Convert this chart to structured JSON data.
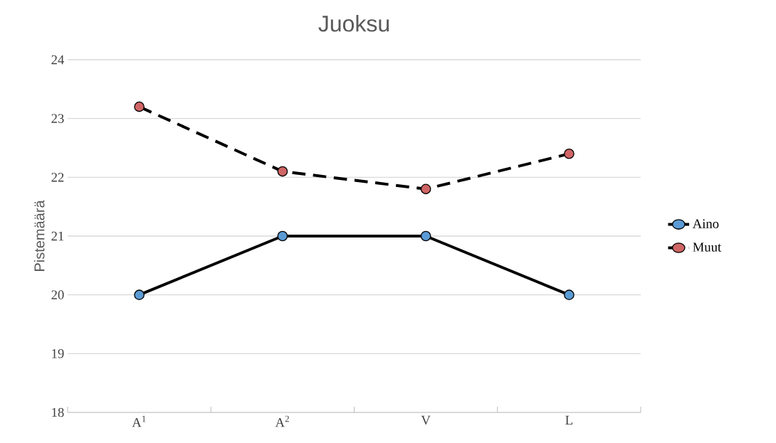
{
  "chart_data": {
    "type": "line",
    "title": "Juoksu",
    "ylabel": "Pistemäärä",
    "categories": [
      "A$^{1}$",
      "A$^{2}$",
      "V",
      "L"
    ],
    "series": [
      {
        "name": "Aino",
        "color": "#5b9bd5",
        "values": [
          20,
          21,
          21,
          20
        ],
        "line_style": "solid"
      },
      {
        "name": "Muut",
        "color": "#d06565",
        "values": [
          23.2,
          22.1,
          21.8,
          22.4
        ],
        "line_style": "dashed"
      }
    ],
    "ylim": [
      18,
      24
    ],
    "yticks": [
      18,
      19,
      20,
      21,
      22,
      23,
      24
    ],
    "grid": "y",
    "legend": "right",
    "marker": "circle"
  }
}
